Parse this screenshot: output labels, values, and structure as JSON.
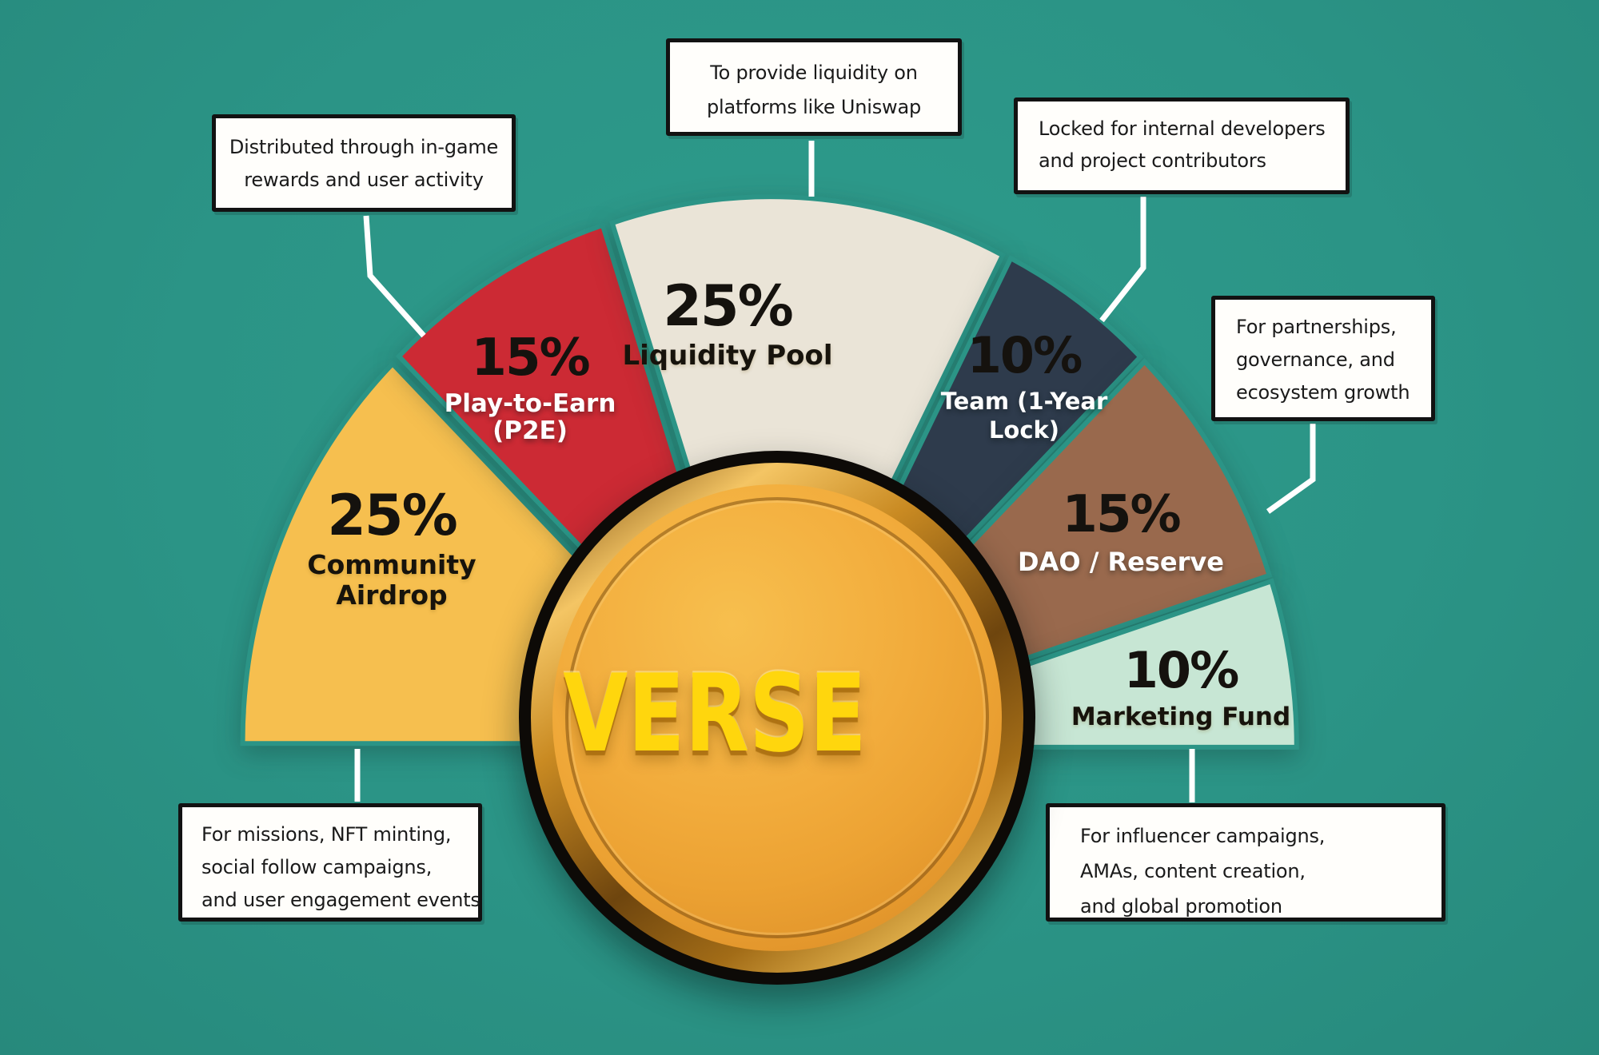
{
  "background": {
    "color": "#2b9486"
  },
  "coin": {
    "word": "VERSE"
  },
  "chart_data": {
    "type": "pie",
    "shape": "semicircle-exploded",
    "title": "VERSE token allocation",
    "unit": "%",
    "legend_position": "on-segments",
    "total": 100,
    "segments": [
      {
        "label": "Community Airdrop",
        "value": 25,
        "pct_label": "25%",
        "name_lines": [
          "Community",
          "Airdrop"
        ],
        "color": "#f6bf4f",
        "text_theme": "dark"
      },
      {
        "label": "Play-to-Earn (P2E)",
        "value": 15,
        "pct_label": "15%",
        "name_lines": [
          "Play-to-Earn",
          "(P2E)"
        ],
        "color": "#cc2a34",
        "text_theme": "light"
      },
      {
        "label": "Liquidity Pool",
        "value": 25,
        "pct_label": "25%",
        "name_lines": [
          "Liquidity Pool"
        ],
        "color": "#eae4d7",
        "text_theme": "dark"
      },
      {
        "label": "Team (1-Year Lock)",
        "value": 10,
        "pct_label": "10%",
        "name_lines": [
          "Team (1-Year",
          "Lock)"
        ],
        "color": "#2e3b4c",
        "text_theme": "light"
      },
      {
        "label": "DAO / Reserve",
        "value": 15,
        "pct_label": "15%",
        "name_lines": [
          "DAO / Reserve"
        ],
        "color": "#99694d",
        "text_theme": "light"
      },
      {
        "label": "Marketing Fund",
        "value": 10,
        "pct_label": "10%",
        "name_lines": [
          "Marketing Fund"
        ],
        "color": "#c7e6d4",
        "text_theme": "dark"
      }
    ]
  },
  "callouts": [
    {
      "for": "Play-to-Earn (P2E)",
      "lines": [
        "Distributed through in-game",
        "rewards and user activity"
      ]
    },
    {
      "for": "Liquidity Pool",
      "lines": [
        "To provide liquidity on",
        "platforms like Uniswap"
      ]
    },
    {
      "for": "Team (1-Year Lock)",
      "lines": [
        "Locked for internal developers",
        "and project contributors"
      ]
    },
    {
      "for": "DAO / Reserve",
      "lines": [
        "For partnerships,",
        "governance, and",
        "ecosystem growth"
      ]
    },
    {
      "for": "Community Airdrop",
      "lines": [
        "For missions, NFT minting,",
        "social follow campaigns,",
        "and user engagement events"
      ]
    },
    {
      "for": "Marketing Fund",
      "lines": [
        "For influencer campaigns,",
        "AMAs, content creation,",
        "and global promotion"
      ]
    }
  ]
}
